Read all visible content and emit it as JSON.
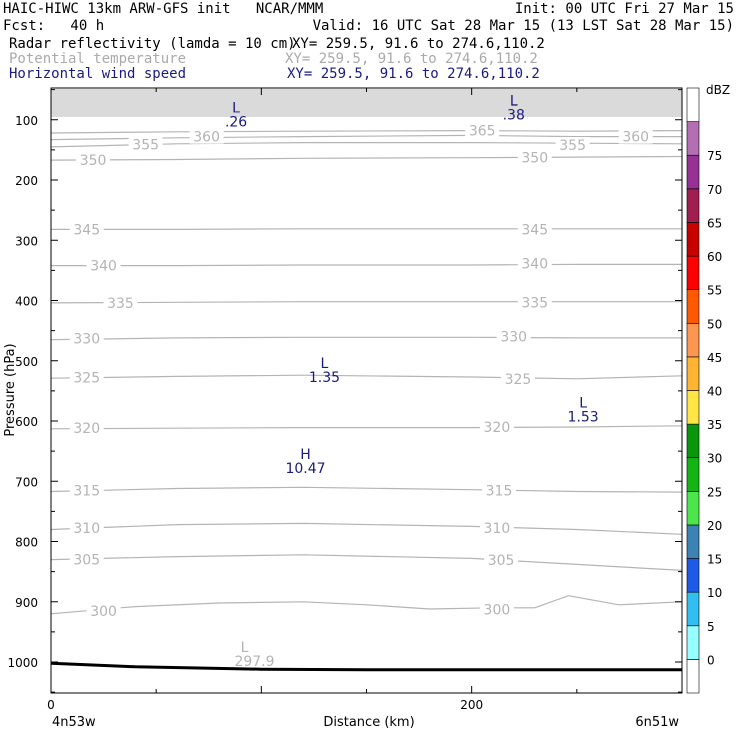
{
  "header": {
    "line1_left": "HAIC-HIWC 13km ARW-GFS init   NCAR/MMM",
    "line1_right": "Init: 00 UTC Fri 27 Mar 15",
    "line2_left": "Fcst:   40 h",
    "line2_right": "Valid: 16 UTC Sat 28 Mar 15 (13 LST Sat 28 Mar 15)",
    "line3_left": "Radar reflectivity (lamda = 10 cm)",
    "line3_right": "XY= 259.5, 91.6 to 274.6,110.2",
    "line4_left": "Potential temperature",
    "line4_right": "XY= 259.5, 91.6 to 274.6,110.2",
    "line5_left": "Horizontal wind speed",
    "line5_right": "XY= 259.5, 91.6 to 274.6,110.2"
  },
  "colors": {
    "theta_contour": "#b4b4b4",
    "wind_label": "#1a1a80",
    "header_gray": "#aaaaaa"
  },
  "chart_data": {
    "type": "cross-section",
    "ylabel": "Pressure (hPa)",
    "xlabel": "Distance (km)",
    "x_start_label": "4n53w",
    "x_end_label": "6n51w",
    "xlim": [
      0,
      300
    ],
    "ylim_hpa": [
      1050,
      50
    ],
    "x_ticks": [
      0,
      200
    ],
    "y_ticks": [
      100,
      200,
      300,
      400,
      500,
      600,
      700,
      800,
      900,
      1000
    ],
    "theta_contours": [
      {
        "theta": 300,
        "points": [
          [
            0,
            920
          ],
          [
            40,
            908
          ],
          [
            80,
            902
          ],
          [
            120,
            900
          ],
          [
            150,
            905
          ],
          [
            180,
            912
          ],
          [
            210,
            910
          ],
          [
            230,
            910
          ],
          [
            246,
            890
          ],
          [
            270,
            905
          ],
          [
            300,
            900
          ]
        ],
        "labels": [
          [
            25,
            915
          ],
          [
            212,
            913
          ]
        ]
      },
      {
        "theta": 305,
        "points": [
          [
            0,
            830
          ],
          [
            60,
            825
          ],
          [
            120,
            822
          ],
          [
            200,
            828
          ],
          [
            250,
            838
          ],
          [
            300,
            848
          ]
        ],
        "labels": [
          [
            17,
            830
          ],
          [
            214,
            831
          ]
        ]
      },
      {
        "theta": 310,
        "points": [
          [
            0,
            780
          ],
          [
            60,
            772
          ],
          [
            120,
            770
          ],
          [
            200,
            775
          ],
          [
            250,
            780
          ],
          [
            300,
            788
          ]
        ],
        "labels": [
          [
            17,
            778
          ],
          [
            212,
            778
          ]
        ]
      },
      {
        "theta": 315,
        "points": [
          [
            0,
            717
          ],
          [
            60,
            712
          ],
          [
            120,
            710
          ],
          [
            200,
            714
          ],
          [
            250,
            717
          ],
          [
            300,
            718
          ]
        ],
        "labels": [
          [
            17,
            715
          ],
          [
            213,
            715
          ]
        ]
      },
      {
        "theta": 320,
        "points": [
          [
            0,
            613
          ],
          [
            60,
            612
          ],
          [
            120,
            611
          ],
          [
            200,
            611
          ],
          [
            250,
            610
          ],
          [
            300,
            608
          ]
        ],
        "labels": [
          [
            17,
            612
          ],
          [
            212,
            610
          ]
        ]
      },
      {
        "theta": 325,
        "points": [
          [
            0,
            529
          ],
          [
            60,
            526
          ],
          [
            120,
            524
          ],
          [
            200,
            527
          ],
          [
            250,
            530
          ],
          [
            300,
            525
          ]
        ],
        "labels": [
          [
            17,
            528
          ],
          [
            222,
            530
          ]
        ]
      },
      {
        "theta": 330,
        "points": [
          [
            0,
            465
          ],
          [
            60,
            462
          ],
          [
            120,
            461
          ],
          [
            200,
            461
          ],
          [
            250,
            462
          ],
          [
            300,
            462
          ]
        ],
        "labels": [
          [
            17,
            463
          ],
          [
            220,
            460
          ]
        ]
      },
      {
        "theta": 335,
        "points": [
          [
            0,
            404
          ],
          [
            60,
            403
          ],
          [
            120,
            402
          ],
          [
            200,
            402
          ],
          [
            250,
            402
          ],
          [
            300,
            402
          ]
        ],
        "labels": [
          [
            33,
            404
          ],
          [
            230,
            403
          ]
        ]
      },
      {
        "theta": 340,
        "points": [
          [
            0,
            342
          ],
          [
            60,
            342
          ],
          [
            120,
            341
          ],
          [
            200,
            341
          ],
          [
            250,
            340
          ],
          [
            300,
            340
          ]
        ],
        "labels": [
          [
            25,
            342
          ],
          [
            230,
            339
          ]
        ]
      },
      {
        "theta": 345,
        "points": [
          [
            0,
            282
          ],
          [
            60,
            282
          ],
          [
            120,
            281
          ],
          [
            200,
            281
          ],
          [
            250,
            281
          ],
          [
            300,
            281
          ]
        ],
        "labels": [
          [
            17,
            282
          ],
          [
            230,
            282
          ]
        ]
      },
      {
        "theta": 350,
        "points": [
          [
            0,
            167
          ],
          [
            60,
            166
          ],
          [
            120,
            164
          ],
          [
            200,
            163
          ],
          [
            250,
            162
          ],
          [
            300,
            161
          ]
        ],
        "labels": [
          [
            20,
            167
          ],
          [
            230,
            163
          ]
        ]
      },
      {
        "theta": 355,
        "points": [
          [
            0,
            145
          ],
          [
            60,
            140
          ],
          [
            120,
            138
          ],
          [
            200,
            138
          ],
          [
            250,
            139
          ],
          [
            300,
            140
          ]
        ],
        "labels": [
          [
            45,
            141
          ],
          [
            248,
            142
          ]
        ]
      },
      {
        "theta": 360,
        "points": [
          [
            0,
            133
          ],
          [
            60,
            130
          ],
          [
            120,
            128
          ],
          [
            200,
            126
          ],
          [
            250,
            128
          ],
          [
            300,
            128
          ]
        ],
        "labels": [
          [
            74,
            128
          ],
          [
            278,
            128
          ]
        ]
      },
      {
        "theta": 365,
        "points": [
          [
            0,
            122
          ],
          [
            60,
            120
          ],
          [
            120,
            119
          ],
          [
            200,
            118
          ],
          [
            250,
            119
          ],
          [
            300,
            118
          ]
        ],
        "labels": [
          [
            205,
            118
          ]
        ]
      }
    ],
    "terrain": [
      [
        0,
        1002
      ],
      [
        40,
        1008
      ],
      [
        100,
        1012
      ],
      [
        150,
        1013
      ],
      [
        300,
        1013
      ]
    ],
    "wind_labels": [
      {
        "kind": "L",
        "value": ".26",
        "x": 88,
        "p": 88
      },
      {
        "kind": "L",
        "value": ".38",
        "x": 220,
        "p": 76
      },
      {
        "kind": "L",
        "value": "1.35",
        "x": 130,
        "p": 512
      },
      {
        "kind": "L",
        "value": "1.53",
        "x": 253,
        "p": 578
      },
      {
        "kind": "H",
        "value": "10.47",
        "x": 121,
        "p": 663
      }
    ],
    "theta_extreme": {
      "kind": "L",
      "value": "297.9",
      "x": 92,
      "p": 987
    },
    "colorbar": {
      "unit": "dBZ",
      "levels": [
        "0",
        "5",
        "10",
        "15",
        "20",
        "25",
        "30",
        "35",
        "40",
        "45",
        "50",
        "55",
        "60",
        "65",
        "70",
        "75"
      ],
      "colors": [
        "#ffffff",
        "#96ffff",
        "#32bef0",
        "#1e5ae6",
        "#3c82b4",
        "#4ce64c",
        "#14b414",
        "#0a960a",
        "#ffe646",
        "#ffb432",
        "#ff9650",
        "#ff5a00",
        "#ff0000",
        "#c80000",
        "#a01e50",
        "#963296",
        "#b46eb4",
        "#ffffff"
      ]
    }
  }
}
